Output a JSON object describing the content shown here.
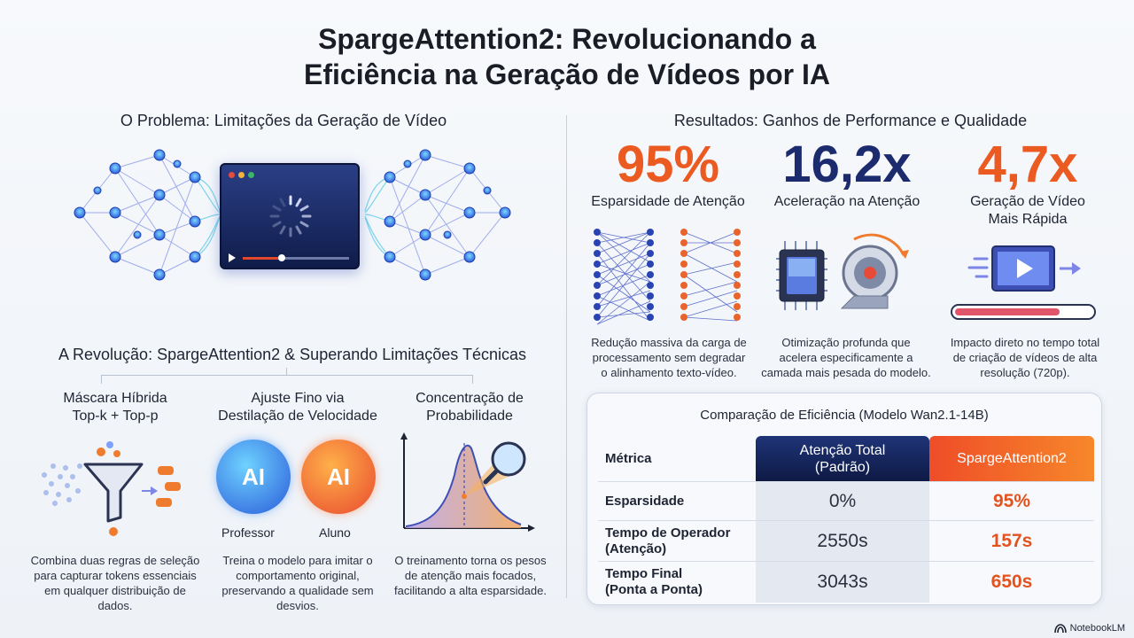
{
  "title_line1": "SpargeAttention2: Revolucionando a",
  "title_line2": "Eficiência na Geração de Vídeos por IA",
  "problem": {
    "heading": "O Problema: Limitações da Geração de Vídeo"
  },
  "results": {
    "heading": "Resultados: Ganhos de Performance e Qualidade",
    "stats": [
      {
        "value": "95%",
        "label": "Esparsidade de Atenção",
        "color": "#ea5a21",
        "desc": [
          "Redução massiva da carga de",
          "processamento sem degradar",
          "o alinhamento texto-vídeo."
        ]
      },
      {
        "value": "16,2x",
        "label": "Aceleração na Atenção",
        "color": "#1c2b6e",
        "desc": [
          "Otimização profunda que",
          "acelera especificamente a",
          "camada mais pesada do modelo."
        ]
      },
      {
        "value": "4,7x",
        "label_line1": "Geração de Vídeo",
        "label_line2": "Mais Rápida",
        "color": "#ea5a21",
        "desc": [
          "Impacto direto no tempo total",
          "de criação de vídeos de alta",
          "resolução (720p)."
        ]
      }
    ]
  },
  "comparison": {
    "title": "Comparação de Eficiência (Modelo Wan2.1-14B)",
    "headers": {
      "metric": "Métrica",
      "total_line1": "Atenção Total",
      "total_line2": "(Padrão)",
      "sparge": "SpargeAttention2"
    },
    "rows": [
      {
        "metric_line1": "Esparsidade",
        "metric_line2": "",
        "total": "0%",
        "sparge": "95%"
      },
      {
        "metric_line1": "Tempo de Operador",
        "metric_line2": "(Atenção)",
        "total": "2550s",
        "sparge": "157s"
      },
      {
        "metric_line1": "Tempo Final",
        "metric_line2": "(Ponta a Ponta)",
        "total": "3043s",
        "sparge": "650s"
      }
    ]
  },
  "revolution": {
    "heading": "A Revolução: SpargeAttention2 & Superando Limitações Técnicas",
    "cols": [
      {
        "h1": "Máscara Híbrida",
        "h2": "Top-k + Top-p",
        "desc": [
          "Combina duas regras de seleção",
          "para capturar tokens essenciais",
          "em qualquer distribuição de",
          "dados."
        ]
      },
      {
        "h1": "Ajuste Fino via",
        "h2": "Destilação de Velocidade",
        "desc": [
          "Treina o modelo para imitar o",
          "comportamento original,",
          "preservando a qualidade sem",
          "desvios."
        ]
      },
      {
        "h1": "Concentração de",
        "h2": "Probabilidade",
        "desc": [
          "O treinamento torna os pesos",
          "de atenção mais focados,",
          "facilitando a alta esparsidade."
        ]
      }
    ],
    "brain_teacher": "Professor",
    "brain_student": "Aluno",
    "brain_text": "AI"
  },
  "footer": {
    "brand": "NotebookLM"
  }
}
